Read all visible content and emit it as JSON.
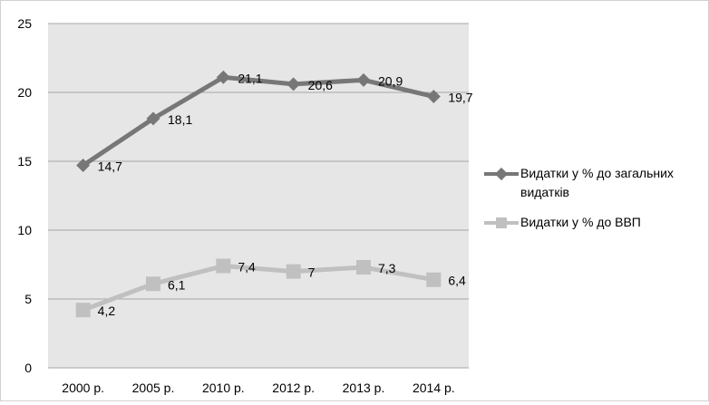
{
  "chart_data": {
    "type": "line",
    "categories": [
      "2000 р.",
      "2005 р.",
      "2010 р.",
      "2012 р.",
      "2013 р.",
      "2014 р."
    ],
    "ylim": [
      0,
      25
    ],
    "yticks": [
      "0",
      "5",
      "10",
      "15",
      "20",
      "25"
    ],
    "grid": true,
    "legend_position": "right",
    "series": [
      {
        "name": "Видатки у % до загальних видатків",
        "values": [
          14.7,
          18.1,
          21.1,
          20.6,
          20.9,
          19.7
        ],
        "labels": [
          "14,7",
          "18,1",
          "21,1",
          "20,6",
          "20,9",
          "19,7"
        ],
        "color": "#777777",
        "marker": "diamond"
      },
      {
        "name": "Видатки у % до ВВП",
        "values": [
          4.2,
          6.1,
          7.4,
          7.0,
          7.3,
          6.4
        ],
        "labels": [
          "4,2",
          "6,1",
          "7,4",
          "7",
          "7,3",
          "6,4"
        ],
        "color": "#c0c0c0",
        "marker": "square"
      }
    ]
  },
  "legend": {
    "line1": "Видатки у % до загальних",
    "line1b": "видатків",
    "line2": "Видатки у % до ВВП"
  }
}
